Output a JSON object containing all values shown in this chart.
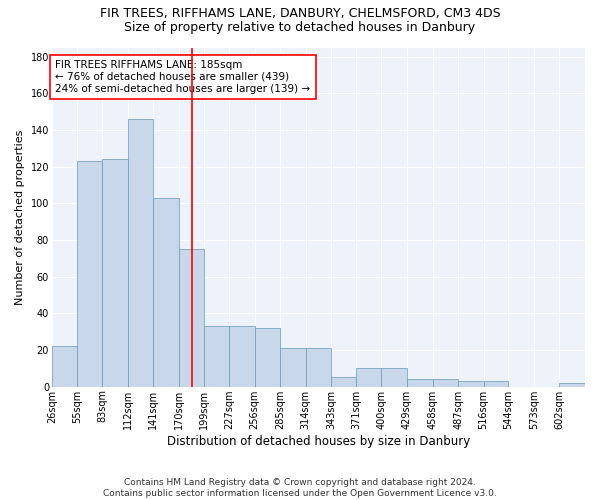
{
  "title1": "FIR TREES, RIFFHAMS LANE, DANBURY, CHELMSFORD, CM3 4DS",
  "title2": "Size of property relative to detached houses in Danbury",
  "xlabel": "Distribution of detached houses by size in Danbury",
  "ylabel": "Number of detached properties",
  "bar_color": "#c8d8ea",
  "bar_edge_color": "#6699bb",
  "background_color": "#eef2fa",
  "grid_color": "white",
  "bin_labels": [
    "26sqm",
    "55sqm",
    "83sqm",
    "112sqm",
    "141sqm",
    "170sqm",
    "199sqm",
    "227sqm",
    "256sqm",
    "285sqm",
    "314sqm",
    "343sqm",
    "371sqm",
    "400sqm",
    "429sqm",
    "458sqm",
    "487sqm",
    "516sqm",
    "544sqm",
    "573sqm",
    "602sqm"
  ],
  "bar_heights": [
    22,
    123,
    124,
    146,
    103,
    75,
    33,
    33,
    32,
    21,
    21,
    5,
    10,
    10,
    4,
    4,
    3,
    3,
    0,
    0,
    2
  ],
  "bin_edges": [
    26,
    55,
    83,
    112,
    141,
    170,
    199,
    227,
    256,
    285,
    314,
    343,
    371,
    400,
    429,
    458,
    487,
    516,
    544,
    573,
    602,
    631
  ],
  "vline_x": 185,
  "vline_color": "red",
  "annotation_text": "FIR TREES RIFFHAMS LANE: 185sqm\n← 76% of detached houses are smaller (439)\n24% of semi-detached houses are larger (139) →",
  "annotation_box_color": "white",
  "annotation_box_edge": "red",
  "ylim": [
    0,
    185
  ],
  "yticks": [
    0,
    20,
    40,
    60,
    80,
    100,
    120,
    140,
    160,
    180
  ],
  "footnote": "Contains HM Land Registry data © Crown copyright and database right 2024.\nContains public sector information licensed under the Open Government Licence v3.0.",
  "title1_fontsize": 9,
  "title2_fontsize": 9,
  "xlabel_fontsize": 8.5,
  "ylabel_fontsize": 8,
  "tick_fontsize": 7,
  "annotation_fontsize": 7.5,
  "footnote_fontsize": 6.5
}
